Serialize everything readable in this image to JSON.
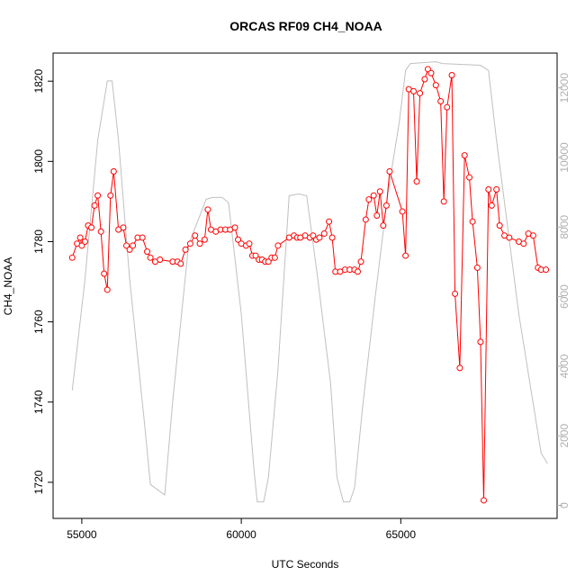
{
  "chart_data": {
    "type": "line",
    "title": "ORCAS RF09 CH4_NOAA",
    "xlabel": "UTC Seconds",
    "ylabel": "CH4_NOAA",
    "xlim": [
      54100,
      69900
    ],
    "ylim": [
      1711,
      1827
    ],
    "y2lim": [
      -375,
      13000
    ],
    "x_ticks": [
      55000,
      60000,
      65000
    ],
    "y_ticks": [
      1720,
      1740,
      1760,
      1780,
      1800,
      1820
    ],
    "y2_ticks": [
      0,
      2000,
      4000,
      6000,
      8000,
      10000,
      12000
    ],
    "grid": false,
    "colors": {
      "primary": "#ff0000",
      "secondary": "#c0c0c0"
    },
    "series": [
      {
        "type": "line-points",
        "values": [
          [
            54700,
            1776
          ],
          [
            54850,
            1779.5
          ],
          [
            54950,
            1781
          ],
          [
            55000,
            1779
          ],
          [
            55100,
            1780
          ],
          [
            55200,
            1784
          ],
          [
            55300,
            1783.5
          ],
          [
            55400,
            1789
          ],
          [
            55500,
            1791.5
          ],
          [
            55600,
            1782.5
          ],
          [
            55700,
            1772
          ],
          [
            55800,
            1768
          ],
          [
            55900,
            1791.5
          ],
          [
            56000,
            1797.5
          ],
          [
            56150,
            1783
          ],
          [
            56300,
            1783.5
          ],
          [
            56400,
            1779
          ],
          [
            56500,
            1778
          ],
          [
            56600,
            1779
          ],
          [
            56750,
            1781
          ],
          [
            56900,
            1781
          ],
          [
            57050,
            1777.5
          ],
          [
            57150,
            1776
          ],
          [
            57300,
            1775
          ],
          [
            57450,
            1775.5
          ],
          [
            57850,
            1775
          ],
          [
            58000,
            1775
          ],
          [
            58100,
            1774.5
          ],
          [
            58250,
            1778
          ],
          [
            58400,
            1779.5
          ],
          [
            58550,
            1781.5
          ],
          [
            58700,
            1779.5
          ],
          [
            58850,
            1780.5
          ],
          [
            58950,
            1788
          ],
          [
            59050,
            1783
          ],
          [
            59200,
            1782.5
          ],
          [
            59350,
            1783
          ],
          [
            59500,
            1783
          ],
          [
            59650,
            1783
          ],
          [
            59800,
            1783.5
          ],
          [
            59900,
            1780.5
          ],
          [
            60000,
            1779.5
          ],
          [
            60150,
            1779
          ],
          [
            60250,
            1779.5
          ],
          [
            60350,
            1776.5
          ],
          [
            60450,
            1776.5
          ],
          [
            60550,
            1775.5
          ],
          [
            60650,
            1775.5
          ],
          [
            60750,
            1775
          ],
          [
            60850,
            1775
          ],
          [
            60950,
            1776
          ],
          [
            61050,
            1776
          ],
          [
            61150,
            1779
          ],
          [
            61500,
            1781
          ],
          [
            61650,
            1781.5
          ],
          [
            61750,
            1781
          ],
          [
            61850,
            1781
          ],
          [
            62000,
            1781.5
          ],
          [
            62150,
            1781
          ],
          [
            62250,
            1781.5
          ],
          [
            62350,
            1780.5
          ],
          [
            62450,
            1781
          ],
          [
            62600,
            1782
          ],
          [
            62750,
            1785
          ],
          [
            62850,
            1781
          ],
          [
            62950,
            1772.5
          ],
          [
            63100,
            1772.5
          ],
          [
            63250,
            1773
          ],
          [
            63400,
            1773
          ],
          [
            63550,
            1773
          ],
          [
            63650,
            1772.5
          ],
          [
            63750,
            1775
          ],
          [
            63900,
            1785.5
          ],
          [
            64000,
            1790.5
          ],
          [
            64150,
            1791.5
          ],
          [
            64250,
            1786.5
          ],
          [
            64350,
            1792.5
          ],
          [
            64450,
            1784
          ],
          [
            64550,
            1789
          ],
          [
            64650,
            1797.5
          ],
          [
            65050,
            1787.5
          ],
          [
            65150,
            1776.5
          ],
          [
            65250,
            1818
          ],
          [
            65400,
            1817.5
          ],
          [
            65500,
            1795
          ],
          [
            65600,
            1817
          ],
          [
            65750,
            1820.5
          ],
          [
            65850,
            1823
          ],
          [
            65950,
            1822
          ],
          [
            66100,
            1819
          ],
          [
            66250,
            1815
          ],
          [
            66350,
            1790
          ],
          [
            66450,
            1813.5
          ],
          [
            66600,
            1821.5
          ],
          [
            66700,
            1767
          ],
          [
            66850,
            1748.5
          ],
          [
            67000,
            1801.5
          ],
          [
            67150,
            1796
          ],
          [
            67250,
            1785
          ],
          [
            67400,
            1773.5
          ],
          [
            67500,
            1755
          ],
          [
            67600,
            1715.5
          ],
          [
            67750,
            1793
          ],
          [
            67850,
            1789
          ],
          [
            68000,
            1793
          ],
          [
            68100,
            1784
          ],
          [
            68250,
            1781.5
          ],
          [
            68400,
            1781
          ],
          [
            68700,
            1780
          ],
          [
            68850,
            1779.5
          ],
          [
            69000,
            1782
          ],
          [
            69150,
            1781.5
          ],
          [
            69300,
            1773.5
          ],
          [
            69400,
            1773
          ],
          [
            69550,
            1773
          ]
        ]
      },
      {
        "type": "line",
        "axis": "right",
        "values": [
          [
            54700,
            3300
          ],
          [
            55100,
            6500
          ],
          [
            55500,
            10500
          ],
          [
            55800,
            12200
          ],
          [
            55950,
            12200
          ],
          [
            56150,
            10500
          ],
          [
            56500,
            6500
          ],
          [
            56950,
            2500
          ],
          [
            57150,
            600
          ],
          [
            57600,
            300
          ],
          [
            57850,
            3000
          ],
          [
            58350,
            7500
          ],
          [
            58900,
            8800
          ],
          [
            59100,
            8850
          ],
          [
            59400,
            8850
          ],
          [
            59600,
            8700
          ],
          [
            60000,
            5500
          ],
          [
            60400,
            1000
          ],
          [
            60500,
            100
          ],
          [
            60700,
            100
          ],
          [
            60850,
            800
          ],
          [
            61150,
            3900
          ],
          [
            61500,
            8900
          ],
          [
            61800,
            8950
          ],
          [
            62050,
            8900
          ],
          [
            62400,
            6500
          ],
          [
            62800,
            3500
          ],
          [
            63000,
            800
          ],
          [
            63200,
            100
          ],
          [
            63400,
            100
          ],
          [
            63550,
            500
          ],
          [
            63800,
            2800
          ],
          [
            64200,
            6000
          ],
          [
            64600,
            9000
          ],
          [
            64950,
            11000
          ],
          [
            65150,
            12500
          ],
          [
            65300,
            12700
          ],
          [
            66100,
            12750
          ],
          [
            66300,
            12700
          ],
          [
            67500,
            12650
          ],
          [
            67750,
            12500
          ],
          [
            68000,
            10500
          ],
          [
            68700,
            5500
          ],
          [
            69400,
            1500
          ],
          [
            69600,
            1200
          ]
        ]
      }
    ]
  }
}
